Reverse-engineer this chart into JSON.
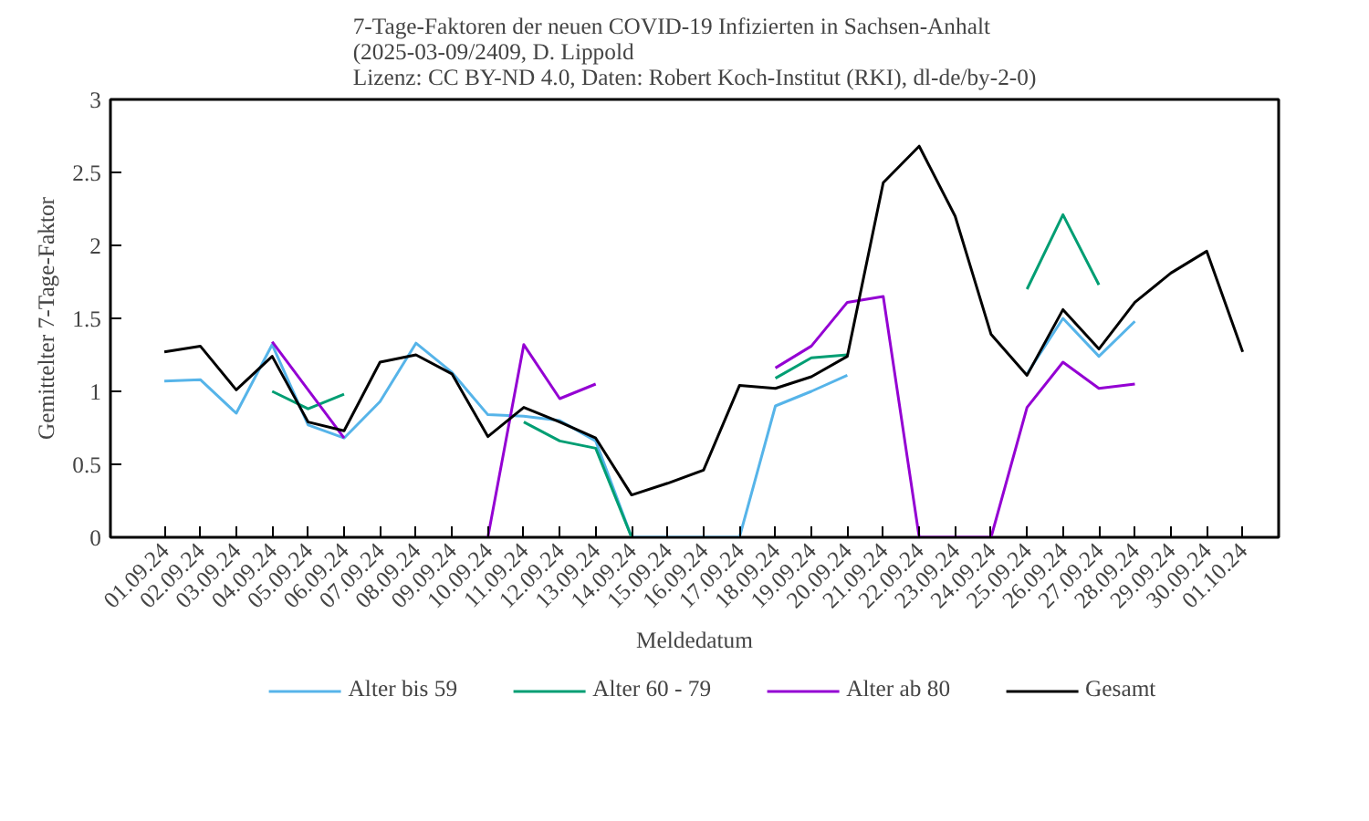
{
  "chart_data": {
    "type": "line",
    "title": "7-Tage-Faktoren der neuen COVID-19 Infizierten in Sachsen-Anhalt\n(2025-03-09/2409, D. Lippold\nLizenz: CC BY-ND 4.0, Daten: Robert Koch-Institut (RKI), dl-de/by-2-0)",
    "xlabel": "Meldedatum",
    "ylabel": "Gemittelter 7-Tage-Faktor",
    "categories": [
      "01.09.24",
      "02.09.24",
      "03.09.24",
      "04.09.24",
      "05.09.24",
      "06.09.24",
      "07.09.24",
      "08.09.24",
      "09.09.24",
      "10.09.24",
      "11.09.24",
      "12.09.24",
      "13.09.24",
      "14.09.24",
      "15.09.24",
      "16.09.24",
      "17.09.24",
      "18.09.24",
      "19.09.24",
      "20.09.24",
      "21.09.24",
      "22.09.24",
      "23.09.24",
      "24.09.24",
      "25.09.24",
      "26.09.24",
      "27.09.24",
      "28.09.24",
      "29.09.24",
      "30.09.24",
      "01.10.24"
    ],
    "series": [
      {
        "name": "Alter bis 59",
        "color": "#56b4e9",
        "values": [
          1.07,
          1.08,
          0.85,
          1.32,
          0.77,
          0.68,
          0.93,
          1.33,
          1.13,
          0.84,
          0.83,
          0.8,
          0.66,
          0,
          0,
          0,
          0,
          0.9,
          1.0,
          1.11,
          null,
          null,
          null,
          null,
          1.12,
          1.5,
          1.24,
          1.48,
          null,
          null,
          null
        ]
      },
      {
        "name": "Alter 60 - 79",
        "color": "#009e73",
        "values": [
          null,
          null,
          null,
          1.0,
          0.88,
          0.98,
          null,
          null,
          null,
          null,
          0.79,
          0.66,
          0.61,
          0,
          null,
          null,
          null,
          1.09,
          1.23,
          1.25,
          null,
          null,
          null,
          null,
          1.7,
          2.21,
          1.73,
          null,
          null,
          null,
          null
        ]
      },
      {
        "name": "Alter ab 80",
        "color": "#9400d3",
        "values": [
          null,
          null,
          null,
          1.34,
          1.01,
          0.68,
          null,
          null,
          null,
          0,
          1.32,
          0.95,
          1.05,
          null,
          null,
          null,
          null,
          1.16,
          1.31,
          1.61,
          1.65,
          0,
          0,
          0,
          0.89,
          1.2,
          1.02,
          1.05,
          null,
          null,
          null
        ]
      },
      {
        "name": "Gesamt",
        "color": "#000000",
        "values": [
          1.27,
          1.31,
          1.01,
          1.24,
          0.79,
          0.73,
          1.2,
          1.25,
          1.12,
          0.69,
          0.89,
          0.79,
          0.68,
          0.29,
          0.37,
          0.46,
          1.04,
          1.02,
          1.1,
          1.24,
          2.43,
          2.68,
          2.2,
          1.39,
          1.11,
          1.56,
          1.29,
          1.61,
          1.81,
          1.96,
          1.27
        ]
      }
    ],
    "ylim": [
      0,
      3
    ],
    "yticks": [
      0,
      0.5,
      1,
      1.5,
      2,
      2.5,
      3
    ],
    "grid": false,
    "legend": "bottom",
    "marker": "none",
    "line_style": "solid"
  }
}
